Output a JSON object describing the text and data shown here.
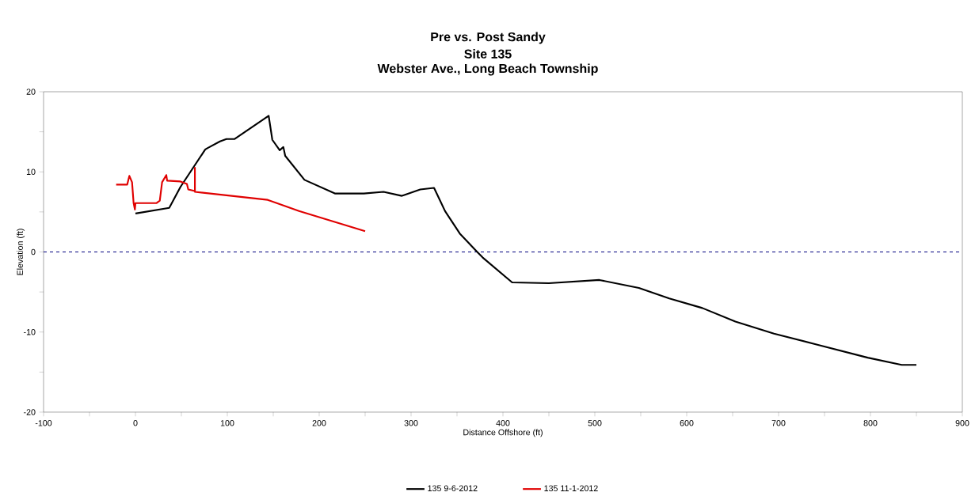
{
  "chart_data": {
    "type": "line",
    "title": "Pre vs. Post Sandy",
    "subtitle": "Site 135",
    "annotations": [
      "Webster Ave., Long Beach Township"
    ],
    "xlabel": "Distance Offshore (ft)",
    "ylabel": "Elevation (ft)",
    "xlim": [
      -100,
      900
    ],
    "ylim": [
      -20,
      20
    ],
    "xticks": [
      -100,
      0,
      100,
      200,
      300,
      400,
      500,
      600,
      700,
      800,
      900
    ],
    "yticks": [
      -20,
      -10,
      0,
      10,
      20
    ],
    "legend": "bottom",
    "grid": false,
    "marker": "none",
    "ref_lines": [
      {
        "axis": "y",
        "value": 0,
        "color": "#000080",
        "line_style": "dashed"
      }
    ],
    "series": [
      {
        "name": "135 9-6-2012",
        "color": "#000000",
        "x": [
          0,
          36.8,
          48.9,
          76,
          79,
          92,
          99,
          108,
          145,
          149,
          157,
          161,
          163,
          184,
          217,
          248.5,
          270,
          290,
          310,
          325,
          337,
          353,
          372,
          378,
          410,
          450,
          505,
          548,
          581,
          617,
          653,
          695,
          743,
          797,
          834,
          850
        ],
        "values": [
          4.8,
          5.5,
          8.1,
          12.8,
          13.0,
          13.8,
          14.1,
          14.1,
          17.0,
          14.0,
          12.7,
          13.1,
          12.0,
          9.0,
          7.3,
          7.3,
          7.5,
          7.0,
          7.8,
          8.0,
          5.1,
          2.3,
          0,
          -0.7,
          -3.8,
          -3.9,
          -3.5,
          -4.5,
          -5.8,
          -7.0,
          -8.7,
          -10.2,
          -11.6,
          -13.2,
          -14.1,
          -14.1
        ]
      },
      {
        "name": "135 11-1-2012",
        "color": "#e00000",
        "x": [
          -21,
          -9,
          -6.6,
          -3.7,
          -2,
          -0.6,
          0,
          23,
          26.5,
          29,
          33.6,
          34.5,
          49,
          56,
          57.5,
          64.7,
          64.7,
          64.7,
          144,
          178,
          250
        ],
        "values": [
          8.4,
          8.4,
          9.5,
          8.7,
          6.1,
          5.3,
          6.1,
          6.1,
          6.4,
          8.7,
          9.6,
          8.9,
          8.8,
          8.5,
          7.8,
          7.6,
          10.5,
          7.5,
          6.5,
          5.1,
          2.6
        ]
      }
    ]
  }
}
